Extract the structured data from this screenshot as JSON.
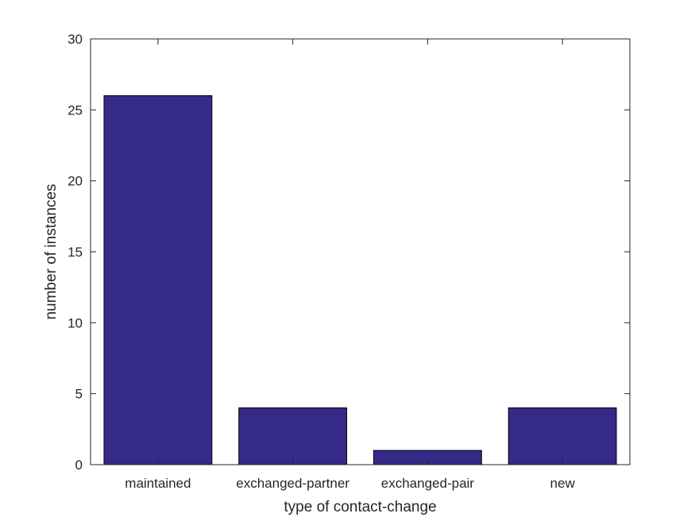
{
  "chart_data": {
    "type": "bar",
    "title": "",
    "xlabel": "type of contact-change",
    "ylabel": "number of instances",
    "categories": [
      "maintained",
      "exchanged-partner",
      "exchanged-pair",
      "new"
    ],
    "values": [
      26,
      4,
      1,
      4
    ],
    "ylim": [
      0,
      30
    ],
    "yticks": [
      0,
      5,
      10,
      15,
      20,
      25,
      30
    ],
    "grid": false,
    "bar_color": "#352a87",
    "edge_color": "#000000"
  }
}
